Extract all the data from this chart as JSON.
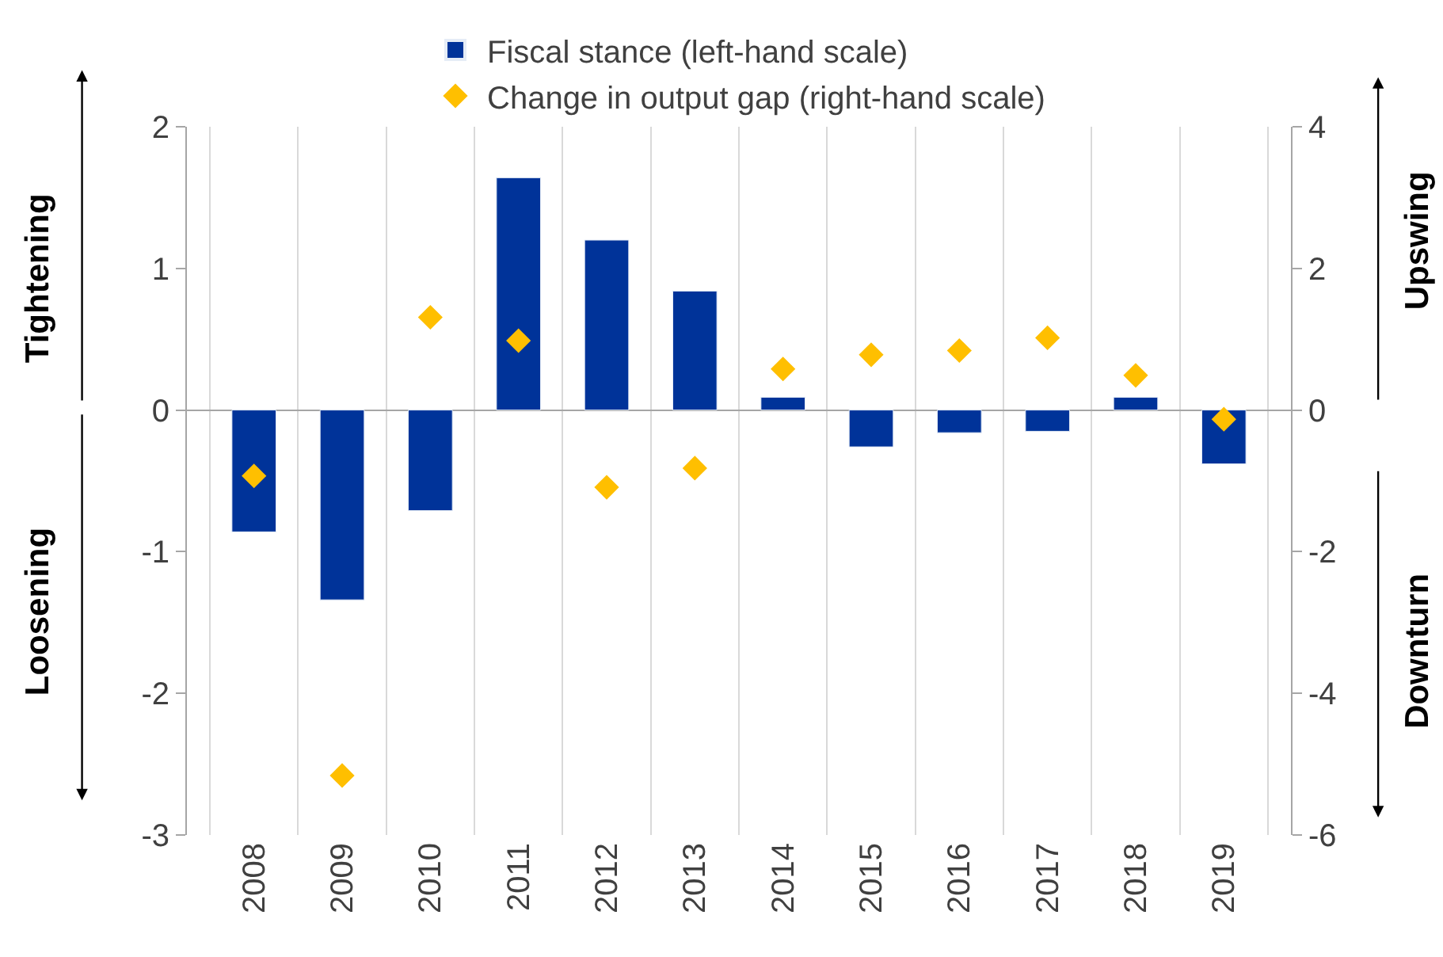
{
  "chart_data": {
    "type": "bar",
    "categories": [
      "2008",
      "2009",
      "2010",
      "2011",
      "2012",
      "2013",
      "2014",
      "2015",
      "2016",
      "2017",
      "2018",
      "2019"
    ],
    "series": [
      {
        "name": "Fiscal stance (left-hand scale)",
        "color": "#003399",
        "values": [
          -0.86,
          -1.34,
          -0.71,
          1.64,
          1.2,
          0.84,
          0.09,
          -0.26,
          -0.16,
          -0.15,
          0.09,
          -0.38
        ]
      },
      {
        "name": "Change in output gap (right-hand scale)",
        "type": "scatter",
        "axis": "y2",
        "color": "#ffbf00",
        "values": [
          -0.93,
          -5.16,
          1.31,
          0.98,
          -1.09,
          -0.82,
          0.58,
          0.78,
          0.84,
          1.02,
          0.49,
          -0.13
        ]
      }
    ],
    "ylim": [
      -3,
      2
    ],
    "yticks": [
      -3,
      -2,
      -1,
      0,
      1,
      2
    ],
    "y2lim": [
      -6,
      4
    ],
    "y2ticks": [
      -6,
      -4,
      -2,
      0,
      2,
      4
    ],
    "annotations": [
      "Tightening",
      "Loosening",
      "Upswing",
      "Downturn"
    ],
    "grid": "x",
    "legend": "top",
    "marker": "diamond"
  }
}
